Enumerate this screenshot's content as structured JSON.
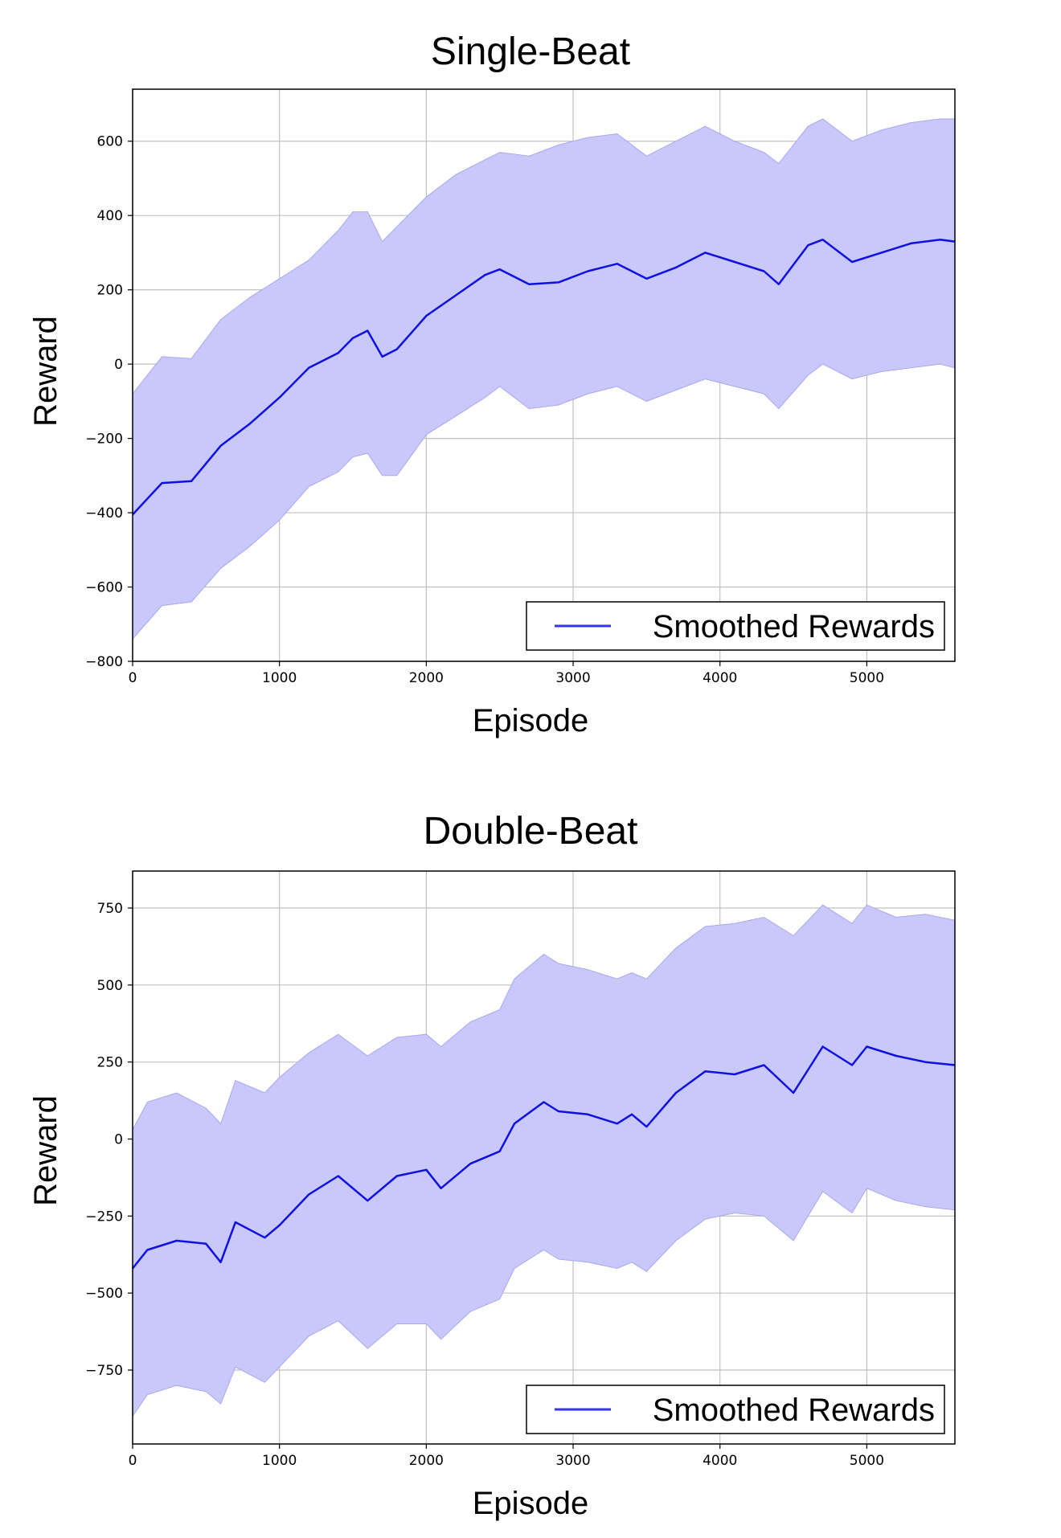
{
  "colors": {
    "line": "#1010e0",
    "band": "#c8c8fa",
    "band_edge": "#a8a8f0",
    "grid": "#c0c0c0"
  },
  "chart_data": [
    {
      "type": "line",
      "title": "Single-Beat",
      "xlabel": "Episode",
      "ylabel": "Reward",
      "xlim": [
        0,
        5600
      ],
      "ylim": [
        -800,
        740
      ],
      "grid": true,
      "legend_position": "bottom-right",
      "xticks": [
        0,
        1000,
        2000,
        3000,
        4000,
        5000
      ],
      "yticks": [
        600,
        400,
        200,
        0,
        -200,
        -400,
        -600,
        -800
      ],
      "xtick_labels": [
        "0",
        "1000",
        "2000",
        "3000",
        "4000",
        "5000"
      ],
      "ytick_labels": [
        "600",
        "400",
        "200",
        "0",
        "−200",
        "−400",
        "−600",
        "−800"
      ],
      "series": [
        {
          "name": "Smoothed Rewards",
          "x": [
            0,
            200,
            400,
            600,
            800,
            1000,
            1200,
            1400,
            1500,
            1600,
            1700,
            1800,
            2000,
            2200,
            2400,
            2500,
            2700,
            2900,
            3100,
            3300,
            3500,
            3700,
            3900,
            4100,
            4300,
            4400,
            4600,
            4700,
            4900,
            5100,
            5300,
            5500,
            5600
          ],
          "y": [
            -405,
            -320,
            -315,
            -220,
            -160,
            -90,
            -10,
            30,
            70,
            90,
            20,
            40,
            130,
            185,
            240,
            255,
            215,
            220,
            250,
            270,
            230,
            260,
            300,
            275,
            250,
            215,
            320,
            335,
            275,
            300,
            325,
            335,
            330
          ],
          "upper": [
            -80,
            20,
            15,
            120,
            180,
            230,
            280,
            360,
            410,
            410,
            330,
            370,
            450,
            510,
            550,
            570,
            560,
            590,
            610,
            620,
            560,
            600,
            640,
            600,
            570,
            540,
            640,
            660,
            600,
            630,
            650,
            660,
            660
          ],
          "lower": [
            -740,
            -650,
            -640,
            -550,
            -490,
            -420,
            -330,
            -290,
            -250,
            -240,
            -300,
            -300,
            -190,
            -140,
            -90,
            -60,
            -120,
            -110,
            -80,
            -60,
            -100,
            -70,
            -40,
            -60,
            -80,
            -120,
            -30,
            0,
            -40,
            -20,
            -10,
            0,
            -10
          ]
        }
      ]
    },
    {
      "type": "line",
      "title": "Double-Beat",
      "xlabel": "Episode",
      "ylabel": "Reward",
      "xlim": [
        0,
        5600
      ],
      "ylim": [
        -990,
        870
      ],
      "grid": true,
      "legend_position": "bottom-right",
      "xticks": [
        0,
        1000,
        2000,
        3000,
        4000,
        5000
      ],
      "yticks": [
        750,
        500,
        250,
        0,
        -250,
        -500,
        -750
      ],
      "xtick_labels": [
        "0",
        "1000",
        "2000",
        "3000",
        "4000",
        "5000"
      ],
      "ytick_labels": [
        "750",
        "500",
        "250",
        "0",
        "−250",
        "−500",
        "−750"
      ],
      "series": [
        {
          "name": "Smoothed Rewards",
          "x": [
            0,
            100,
            300,
            500,
            600,
            700,
            900,
            1000,
            1200,
            1400,
            1600,
            1800,
            2000,
            2100,
            2300,
            2500,
            2600,
            2800,
            2900,
            3100,
            3300,
            3400,
            3500,
            3700,
            3900,
            4100,
            4300,
            4500,
            4700,
            4900,
            5000,
            5200,
            5400,
            5600
          ],
          "y": [
            -420,
            -360,
            -330,
            -340,
            -400,
            -270,
            -320,
            -280,
            -180,
            -120,
            -200,
            -120,
            -100,
            -160,
            -80,
            -40,
            50,
            120,
            90,
            80,
            50,
            80,
            40,
            150,
            220,
            210,
            240,
            150,
            300,
            240,
            300,
            270,
            250,
            240
          ],
          "upper": [
            30,
            120,
            150,
            100,
            50,
            190,
            150,
            200,
            280,
            340,
            270,
            330,
            340,
            300,
            380,
            420,
            520,
            600,
            570,
            550,
            520,
            540,
            520,
            620,
            690,
            700,
            720,
            660,
            760,
            700,
            760,
            720,
            730,
            710
          ],
          "lower": [
            -900,
            -830,
            -800,
            -820,
            -860,
            -740,
            -790,
            -740,
            -640,
            -590,
            -680,
            -600,
            -600,
            -650,
            -560,
            -520,
            -420,
            -360,
            -390,
            -400,
            -420,
            -400,
            -430,
            -330,
            -260,
            -240,
            -250,
            -330,
            -170,
            -240,
            -160,
            -200,
            -220,
            -230
          ]
        }
      ]
    }
  ]
}
